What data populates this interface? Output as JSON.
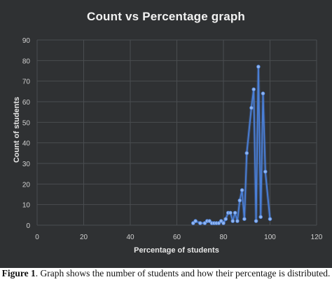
{
  "chart_data": {
    "type": "line",
    "title": "Count vs Percentage graph",
    "xlabel": "Percentage of students",
    "ylabel": "Count of students",
    "xlim": [
      0,
      120
    ],
    "ylim": [
      0,
      90
    ],
    "xticks": [
      "0",
      "20",
      "40",
      "60",
      "80",
      "100",
      "120"
    ],
    "yticks": [
      "0",
      "10",
      "20",
      "30",
      "40",
      "50",
      "60",
      "70",
      "80",
      "90"
    ],
    "grid": true,
    "legend": "none",
    "series_color": "#4a7fd6",
    "points": [
      {
        "x": 67,
        "y": 1
      },
      {
        "x": 68,
        "y": 2
      },
      {
        "x": 70,
        "y": 1
      },
      {
        "x": 72,
        "y": 1
      },
      {
        "x": 73,
        "y": 2
      },
      {
        "x": 74,
        "y": 2
      },
      {
        "x": 75,
        "y": 1
      },
      {
        "x": 76,
        "y": 1
      },
      {
        "x": 77,
        "y": 1
      },
      {
        "x": 78,
        "y": 1
      },
      {
        "x": 79,
        "y": 2
      },
      {
        "x": 80,
        "y": 1
      },
      {
        "x": 81,
        "y": 3
      },
      {
        "x": 82,
        "y": 6
      },
      {
        "x": 83,
        "y": 6
      },
      {
        "x": 84,
        "y": 2
      },
      {
        "x": 85,
        "y": 6
      },
      {
        "x": 86,
        "y": 2
      },
      {
        "x": 87,
        "y": 12
      },
      {
        "x": 88,
        "y": 17
      },
      {
        "x": 89,
        "y": 3
      },
      {
        "x": 90,
        "y": 35
      },
      {
        "x": 92,
        "y": 57
      },
      {
        "x": 93,
        "y": 66
      },
      {
        "x": 94,
        "y": 2
      },
      {
        "x": 95,
        "y": 77
      },
      {
        "x": 96,
        "y": 4
      },
      {
        "x": 97,
        "y": 64
      },
      {
        "x": 98,
        "y": 26
      },
      {
        "x": 100,
        "y": 3
      }
    ]
  },
  "caption": {
    "label": "Figure 1",
    "text": ". Graph shows the number of students and how their percentage is distributed."
  }
}
